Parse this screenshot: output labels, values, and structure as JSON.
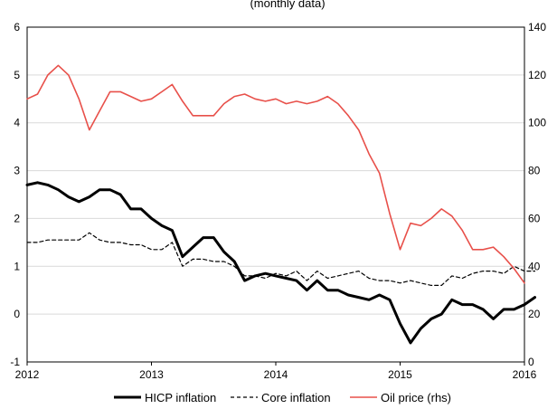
{
  "chart_data": {
    "type": "line",
    "title_fragment": "(monthly data)",
    "x_ticks": [
      "2012",
      "2013",
      "2014",
      "2015",
      "2016"
    ],
    "y_left": {
      "lim": [
        -1,
        6
      ],
      "ticks": [
        "-1",
        "0",
        "1",
        "2",
        "3",
        "4",
        "5",
        "6"
      ]
    },
    "y_right": {
      "lim": [
        0,
        140
      ],
      "ticks": [
        "0",
        "20",
        "40",
        "60",
        "80",
        "100",
        "120",
        "140"
      ]
    },
    "x_start_year": 2012,
    "legend_position": "bottom",
    "series": [
      {
        "name": "HICP inflation",
        "axis": "left",
        "color": "#000000",
        "style": "solid-thick",
        "values": [
          2.7,
          2.75,
          2.7,
          2.6,
          2.45,
          2.35,
          2.45,
          2.6,
          2.6,
          2.5,
          2.2,
          2.2,
          2.0,
          1.85,
          1.75,
          1.2,
          1.4,
          1.6,
          1.6,
          1.3,
          1.1,
          0.7,
          0.8,
          0.85,
          0.8,
          0.75,
          0.7,
          0.5,
          0.7,
          0.5,
          0.5,
          0.4,
          0.35,
          0.3,
          0.4,
          0.3,
          -0.2,
          -0.6,
          -0.3,
          -0.1,
          0.0,
          0.3,
          0.2,
          0.2,
          0.1,
          -0.1,
          0.1,
          0.1,
          0.2,
          0.35
        ]
      },
      {
        "name": "Core inflation",
        "axis": "left",
        "color": "#000000",
        "style": "dashed",
        "values": [
          1.5,
          1.5,
          1.55,
          1.55,
          1.55,
          1.55,
          1.7,
          1.55,
          1.5,
          1.5,
          1.45,
          1.45,
          1.35,
          1.35,
          1.5,
          1.0,
          1.15,
          1.15,
          1.1,
          1.1,
          1.0,
          0.8,
          0.8,
          0.75,
          0.85,
          0.8,
          0.9,
          0.7,
          0.9,
          0.75,
          0.8,
          0.85,
          0.9,
          0.75,
          0.7,
          0.7,
          0.65,
          0.7,
          0.65,
          0.6,
          0.6,
          0.8,
          0.75,
          0.85,
          0.9,
          0.9,
          0.85,
          1.0,
          0.9,
          0.9
        ]
      },
      {
        "name": "Oil price (rhs)",
        "axis": "right",
        "color": "#e8504a",
        "style": "solid",
        "values": [
          110,
          112,
          120,
          124,
          120,
          110,
          97,
          105,
          113,
          113,
          111,
          109,
          110,
          113,
          116,
          109,
          103,
          103,
          103,
          108,
          111,
          112,
          110,
          109,
          110,
          108,
          109,
          108,
          109,
          111,
          108,
          103,
          97,
          87,
          79,
          62,
          47,
          58,
          57,
          60,
          64,
          61,
          55,
          47,
          47,
          48,
          44,
          39,
          33
        ]
      }
    ]
  }
}
